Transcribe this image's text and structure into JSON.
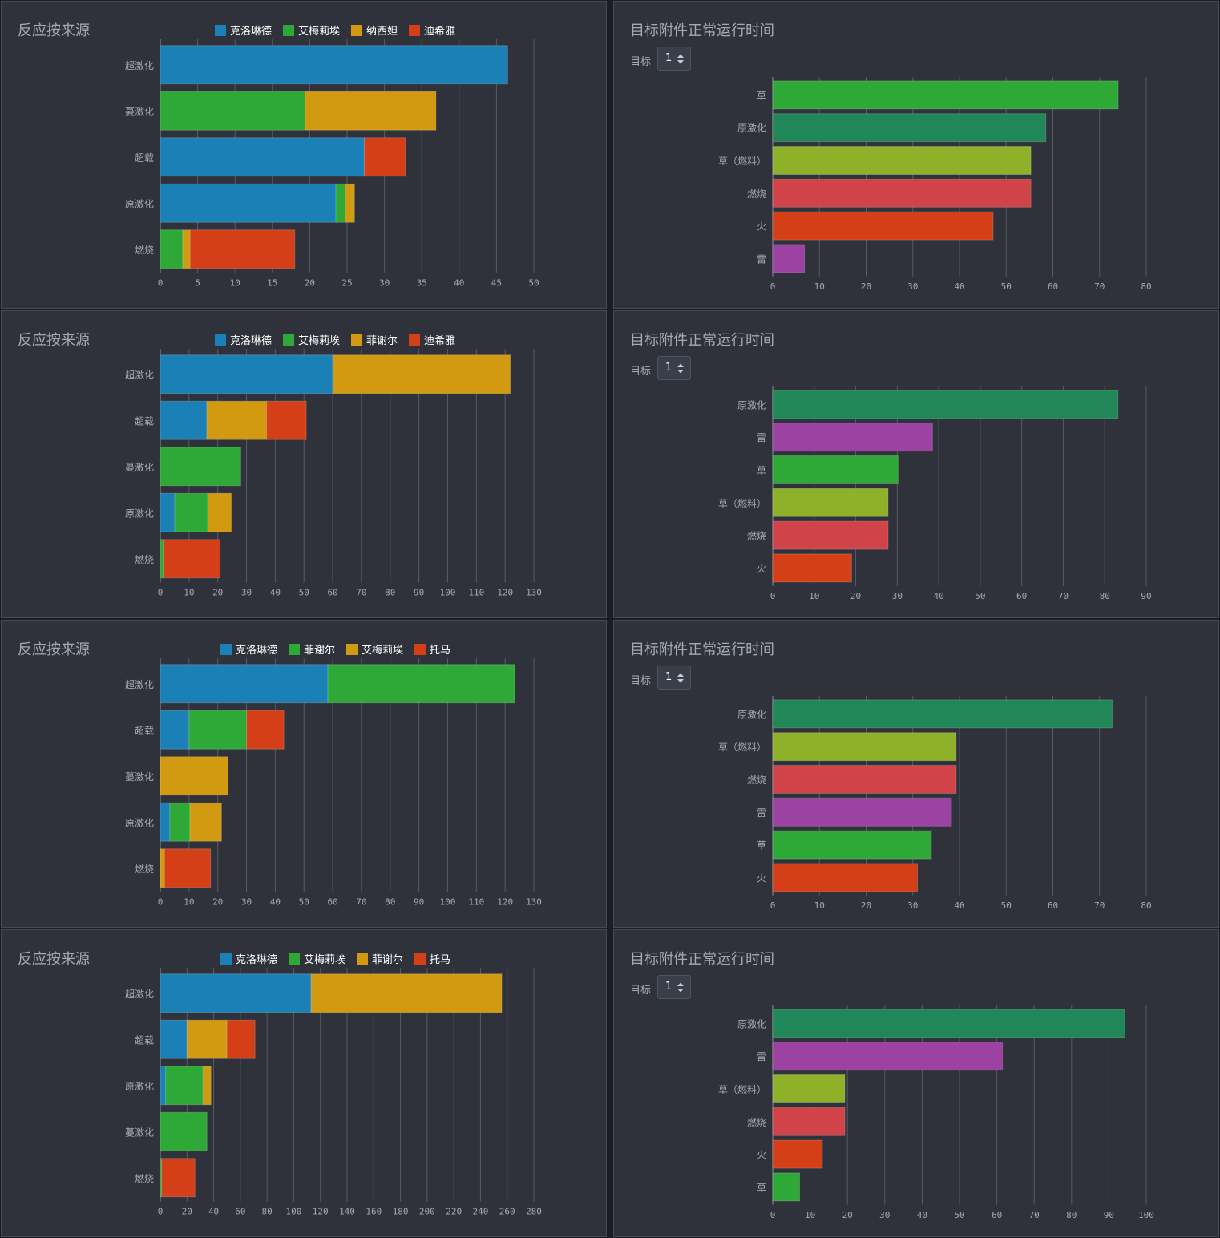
{
  "labels": {
    "source_title": "反应按来源",
    "uptime_title": "目标附件正常运行时间",
    "target_label": "目标",
    "target_value": "1"
  },
  "colors": {
    "panel_bg": "#2f323b",
    "克洛琳德": "#1a80b6",
    "艾梅莉埃": "#2ea836",
    "纳西妲": "#d29a10",
    "菲谢尔": "#d29a10",
    "迪希雅": "#d53f18",
    "托马": "#d53f18",
    "草": "#2ea836",
    "原激化": "#218758",
    "草（燃料）": "#8fb12a",
    "燃烧": "#d04348",
    "火": "#d53f18",
    "雷": "#9b42a3"
  },
  "source_panels": [
    {
      "title": "反应按来源",
      "chart_data": {
        "type": "bar",
        "orientation": "horizontal",
        "stacked": true,
        "title": "反应按来源",
        "categories": [
          "超激化",
          "蔓激化",
          "超载",
          "原激化",
          "燃烧"
        ],
        "series": [
          {
            "name": "克洛琳德",
            "color": "#1a80b6",
            "values": [
              46.5,
              0,
              27.3,
              23.5,
              0
            ]
          },
          {
            "name": "艾梅莉埃",
            "color": "#2ea836",
            "values": [
              0,
              19.4,
              0,
              1.3,
              3.0
            ]
          },
          {
            "name": "纳西妲",
            "color": "#d29a10",
            "values": [
              0,
              17.5,
              0,
              1.2,
              1.0
            ]
          },
          {
            "name": "迪希雅",
            "color": "#d53f18",
            "values": [
              0,
              0,
              5.5,
              0,
              14.0
            ]
          }
        ],
        "xlim": [
          0,
          50
        ],
        "xticks": [
          0,
          5,
          10,
          15,
          20,
          25,
          30,
          35,
          40,
          45,
          50
        ],
        "legend_position": "top"
      }
    },
    {
      "title": "反应按来源",
      "chart_data": {
        "type": "bar",
        "orientation": "horizontal",
        "stacked": true,
        "title": "反应按来源",
        "categories": [
          "超激化",
          "超载",
          "蔓激化",
          "原激化",
          "燃烧"
        ],
        "series": [
          {
            "name": "克洛琳德",
            "color": "#1a80b6",
            "values": [
              60,
              16.2,
              0,
              5,
              0
            ]
          },
          {
            "name": "艾梅莉埃",
            "color": "#2ea836",
            "values": [
              0,
              0,
              28,
              11.5,
              1
            ]
          },
          {
            "name": "菲谢尔",
            "color": "#d29a10",
            "values": [
              61.8,
              20.8,
              0,
              8.2,
              0
            ]
          },
          {
            "name": "迪希雅",
            "color": "#d53f18",
            "values": [
              0,
              13.8,
              0,
              0,
              19.8
            ]
          }
        ],
        "xlim": [
          0,
          130
        ],
        "xticks": [
          0,
          10,
          20,
          30,
          40,
          50,
          60,
          70,
          80,
          90,
          100,
          110,
          120,
          130
        ],
        "legend_position": "top"
      }
    },
    {
      "title": "反应按来源",
      "chart_data": {
        "type": "bar",
        "orientation": "horizontal",
        "stacked": true,
        "title": "反应按来源",
        "categories": [
          "超激化",
          "超载",
          "蔓激化",
          "原激化",
          "燃烧"
        ],
        "series": [
          {
            "name": "克洛琳德",
            "color": "#1a80b6",
            "values": [
              58.3,
              10,
              0,
              3.3,
              0
            ]
          },
          {
            "name": "菲谢尔",
            "color": "#2ea836",
            "values": [
              65,
              20,
              0,
              7,
              0
            ]
          },
          {
            "name": "艾梅莉埃",
            "color": "#d29a10",
            "values": [
              0,
              0,
              23.5,
              11,
              1.5
            ]
          },
          {
            "name": "托马",
            "color": "#d53f18",
            "values": [
              0,
              13,
              0,
              0,
              16
            ]
          }
        ],
        "xlim": [
          0,
          130
        ],
        "xticks": [
          0,
          10,
          20,
          30,
          40,
          50,
          60,
          70,
          80,
          90,
          100,
          110,
          120,
          130
        ],
        "legend_position": "top"
      }
    },
    {
      "title": "反应按来源",
      "chart_data": {
        "type": "bar",
        "orientation": "horizontal",
        "stacked": true,
        "title": "反应按来源",
        "categories": [
          "超激化",
          "超载",
          "原激化",
          "蔓激化",
          "燃烧"
        ],
        "series": [
          {
            "name": "克洛琳德",
            "color": "#1a80b6",
            "values": [
              113,
              20,
              4,
              0,
              0
            ]
          },
          {
            "name": "艾梅莉埃",
            "color": "#2ea836",
            "values": [
              0,
              0,
              28,
              35,
              1
            ]
          },
          {
            "name": "菲谢尔",
            "color": "#d29a10",
            "values": [
              143,
              30,
              6,
              0,
              0
            ]
          },
          {
            "name": "托马",
            "color": "#d53f18",
            "values": [
              0,
              21,
              0,
              0,
              25
            ]
          }
        ],
        "xlim": [
          0,
          280
        ],
        "xticks": [
          0,
          20,
          40,
          60,
          80,
          100,
          120,
          140,
          160,
          180,
          200,
          220,
          240,
          260,
          280
        ],
        "legend_position": "top"
      }
    }
  ],
  "uptime_panels": [
    {
      "title": "目标附件正常运行时间",
      "target_label": "目标",
      "target_value": "1",
      "chart_data": {
        "type": "bar",
        "orientation": "horizontal",
        "title": "目标附件正常运行时间",
        "categories": [
          "草",
          "原激化",
          "草（燃料）",
          "燃烧",
          "火",
          "雷"
        ],
        "values": [
          74,
          58.5,
          55.3,
          55.3,
          47.2,
          6.8
        ],
        "xlim": [
          0,
          80
        ],
        "xticks": [
          0,
          10,
          20,
          30,
          40,
          50,
          60,
          70,
          80
        ]
      }
    },
    {
      "title": "目标附件正常运行时间",
      "target_label": "目标",
      "target_value": "1",
      "chart_data": {
        "type": "bar",
        "orientation": "horizontal",
        "title": "目标附件正常运行时间",
        "categories": [
          "原激化",
          "雷",
          "草",
          "草（燃料）",
          "燃烧",
          "火"
        ],
        "values": [
          83.2,
          38.5,
          30.2,
          27.8,
          27.8,
          19
        ],
        "xlim": [
          0,
          90
        ],
        "xticks": [
          0,
          10,
          20,
          30,
          40,
          50,
          60,
          70,
          80,
          90
        ]
      }
    },
    {
      "title": "目标附件正常运行时间",
      "target_label": "目标",
      "target_value": "1",
      "chart_data": {
        "type": "bar",
        "orientation": "horizontal",
        "title": "目标附件正常运行时间",
        "categories": [
          "原激化",
          "草（燃料）",
          "燃烧",
          "雷",
          "草",
          "火"
        ],
        "values": [
          72.7,
          39.3,
          39.3,
          38.3,
          34,
          31
        ],
        "xlim": [
          0,
          80
        ],
        "xticks": [
          0,
          10,
          20,
          30,
          40,
          50,
          60,
          70,
          80
        ]
      }
    },
    {
      "title": "目标附件正常运行时间",
      "target_label": "目标",
      "target_value": "1",
      "chart_data": {
        "type": "bar",
        "orientation": "horizontal",
        "title": "目标附件正常运行时间",
        "categories": [
          "原激化",
          "雷",
          "草（燃料）",
          "燃烧",
          "火",
          "草"
        ],
        "values": [
          94.3,
          61.5,
          19.3,
          19.3,
          13.3,
          7.2
        ],
        "xlim": [
          0,
          100
        ],
        "xticks": [
          0,
          10,
          20,
          30,
          40,
          50,
          60,
          70,
          80,
          90,
          100
        ]
      }
    }
  ]
}
